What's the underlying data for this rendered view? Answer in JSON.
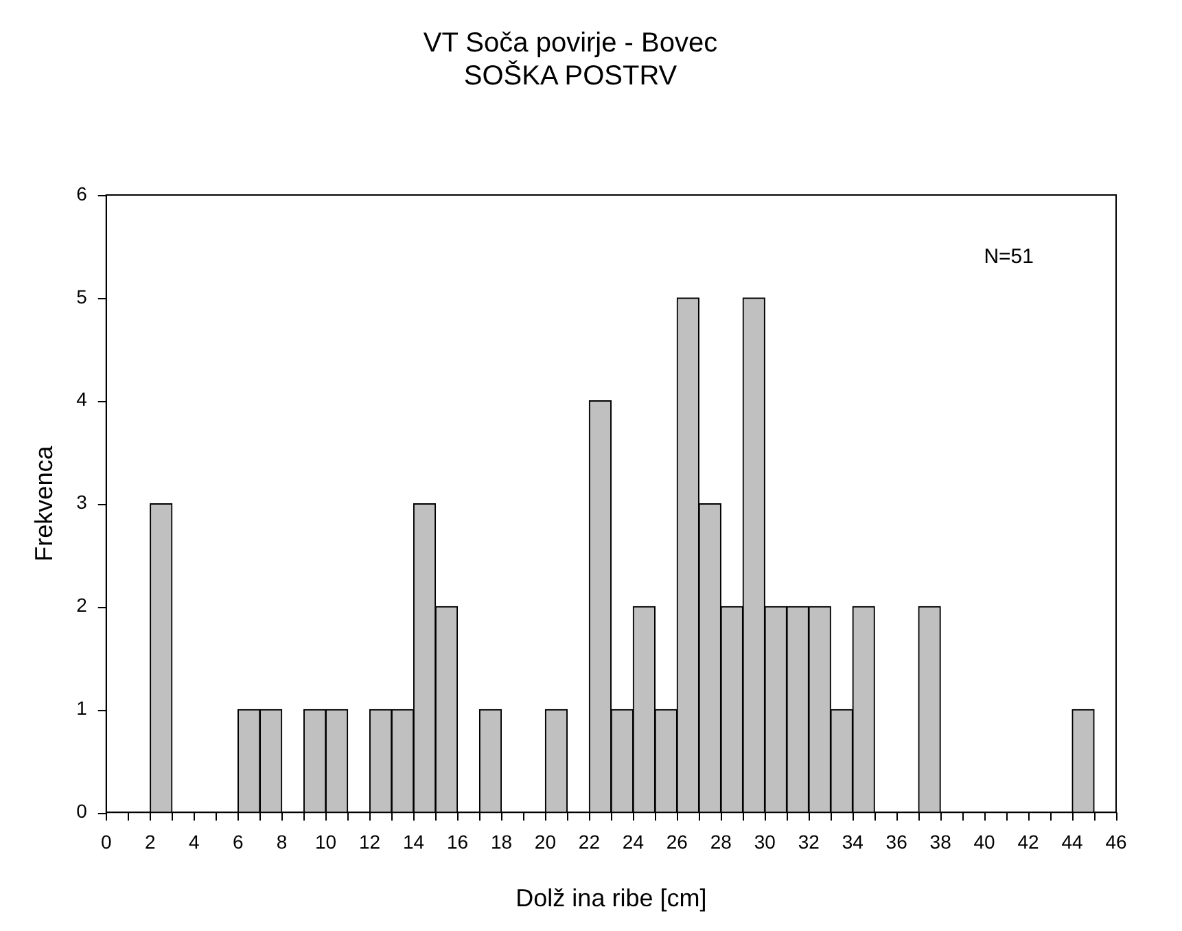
{
  "chart_data": {
    "type": "histogram",
    "title": "VT Soča povirje - Bovec",
    "subtitle": "SOŠKA POSTRV",
    "xlabel": "Dolž ina ribe [cm]",
    "ylabel": "Frekvenca",
    "annotations": [
      "N=51"
    ],
    "bins": [
      0,
      1,
      2,
      3,
      4,
      5,
      6,
      7,
      8,
      9,
      10,
      11,
      12,
      13,
      14,
      15,
      16,
      17,
      18,
      19,
      20,
      21,
      22,
      23,
      24,
      25,
      26,
      27,
      28,
      29,
      30,
      31,
      32,
      33,
      34,
      35,
      36,
      37,
      38,
      39,
      40,
      41,
      42,
      43,
      44,
      45,
      46
    ],
    "values": [
      0,
      0,
      3,
      0,
      0,
      0,
      1,
      1,
      0,
      1,
      1,
      0,
      1,
      1,
      3,
      2,
      0,
      1,
      0,
      0,
      1,
      0,
      4,
      1,
      2,
      1,
      5,
      3,
      2,
      5,
      2,
      2,
      2,
      1,
      2,
      0,
      0,
      2,
      0,
      0,
      0,
      0,
      0,
      0,
      1,
      0
    ],
    "color": "#c0c0c0",
    "xlim": [
      0,
      46
    ],
    "xticks": [
      0,
      {
        "value": 1,
        "label": null
      },
      2,
      {
        "value": 3,
        "label": null
      },
      4,
      {
        "value": 5,
        "label": null
      },
      6,
      {
        "value": 7,
        "label": null
      },
      8,
      {
        "value": 9,
        "label": null
      },
      10,
      {
        "value": 11,
        "label": null
      },
      12,
      {
        "value": 13,
        "label": null
      },
      14,
      {
        "value": 15,
        "label": null
      },
      16,
      {
        "value": 17,
        "label": null
      },
      18,
      {
        "value": 19,
        "label": null
      },
      20,
      {
        "value": 21,
        "label": null
      },
      22,
      {
        "value": 23,
        "label": null
      },
      24,
      {
        "value": 25,
        "label": null
      },
      26,
      {
        "value": 27,
        "label": null
      },
      28,
      {
        "value": 29,
        "label": null
      },
      30,
      {
        "value": 31,
        "label": null
      },
      32,
      {
        "value": 33,
        "label": null
      },
      34,
      {
        "value": 35,
        "label": null
      },
      36,
      {
        "value": 37,
        "label": null
      },
      38,
      {
        "value": 39,
        "label": null
      },
      40,
      {
        "value": 41,
        "label": null
      },
      42,
      {
        "value": 43,
        "label": null
      },
      44,
      {
        "value": 45,
        "label": null
      },
      46
    ],
    "ylim": [
      0,
      6
    ],
    "yticks": [
      0,
      1,
      2,
      3,
      4,
      5,
      6
    ],
    "grid": false
  }
}
